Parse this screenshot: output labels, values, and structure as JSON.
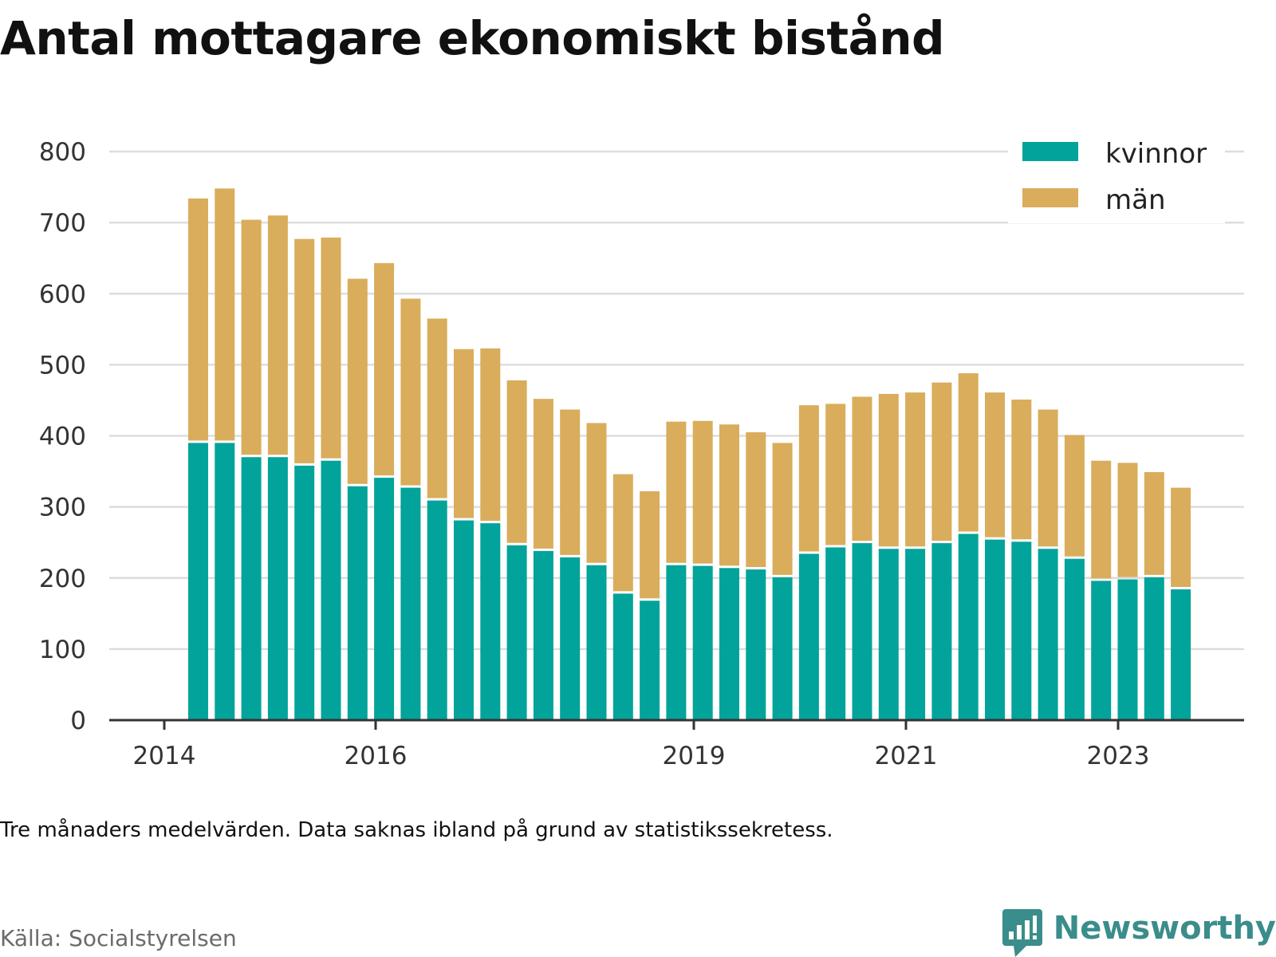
{
  "title": "Antal mottagare ekonomiskt bistånd",
  "note": "Tre månaders medelvärden. Data saknas ibland på grund av statistikssekretess.",
  "source": "Källa: Socialstyrelsen",
  "brand": "Newsworthy",
  "colors": {
    "kvinnor": "#02a39a",
    "man": "#d9ad5b",
    "grid": "#dddddd",
    "axis": "#333333",
    "brand": "#3a8d8a"
  },
  "chart_data": {
    "type": "bar",
    "stacked": true,
    "ylim": [
      0,
      800
    ],
    "yticks": [
      0,
      100,
      200,
      300,
      400,
      500,
      600,
      700,
      800
    ],
    "xticks": [
      "2014",
      "2016",
      "2019",
      "2021",
      "2023"
    ],
    "grid": true,
    "legend_position": "top-right",
    "series": [
      {
        "name": "kvinnor",
        "values": [
          390,
          390,
          370,
          370,
          358,
          365,
          329,
          341,
          327,
          309,
          281,
          277,
          246,
          238,
          229,
          218,
          178,
          168,
          218,
          217,
          214,
          212,
          201,
          234,
          243,
          249,
          241,
          241,
          249,
          262,
          254,
          251,
          241,
          227,
          196,
          198,
          201,
          184
        ]
      },
      {
        "name": "män",
        "values": [
          344,
          358,
          334,
          340,
          319,
          314,
          292,
          302,
          266,
          256,
          241,
          246,
          232,
          214,
          208,
          200,
          168,
          154,
          202,
          204,
          202,
          193,
          189,
          209,
          202,
          206,
          218,
          220,
          226,
          226,
          207,
          200,
          196,
          174,
          169,
          164,
          148,
          143
        ]
      }
    ]
  }
}
